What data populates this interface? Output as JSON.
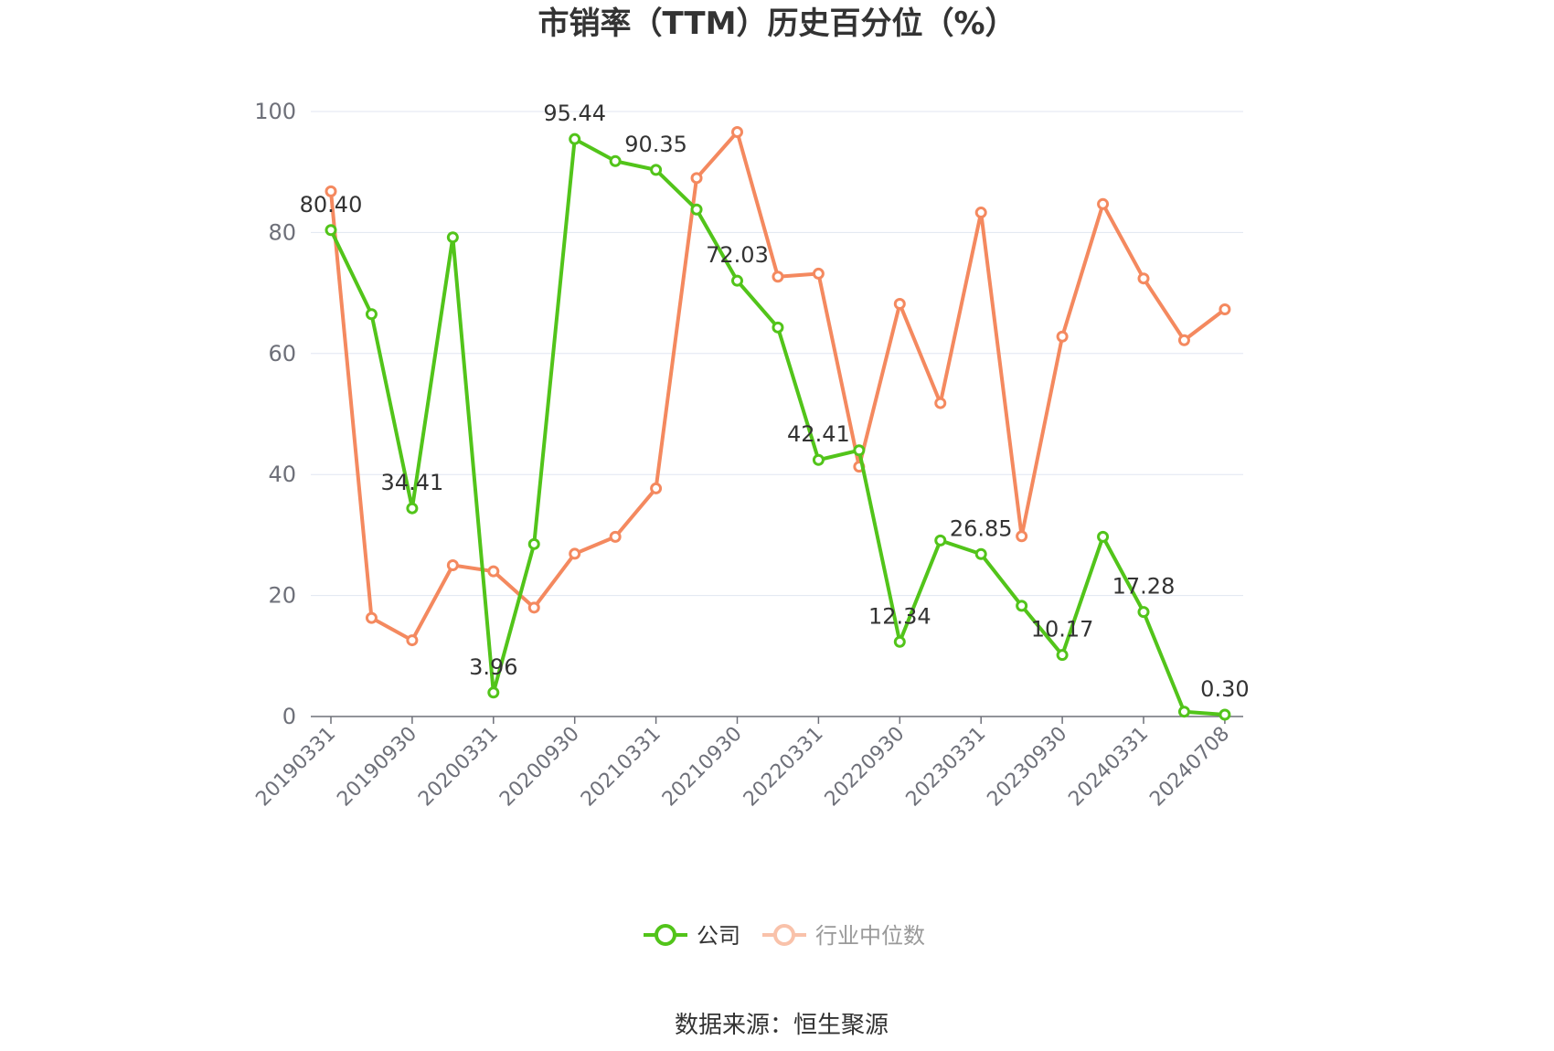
{
  "title": "市销率（TTM）历史百分位（%）",
  "source": "数据来源：恒生聚源",
  "legend": [
    {
      "name": "公司",
      "color": "#52c41a",
      "active": true
    },
    {
      "name": "行业中位数",
      "color": "#f4895f",
      "active": false
    }
  ],
  "chart_data": {
    "type": "line",
    "ylim": [
      0,
      100
    ],
    "yticks": [
      0,
      20,
      40,
      60,
      80,
      100
    ],
    "grid": true,
    "legend_position": "bottom",
    "x": [
      "20190331",
      "20190630",
      "20190930",
      "20191231",
      "20200331",
      "20200630",
      "20200930",
      "20201231",
      "20210331",
      "20210630",
      "20210930",
      "20211231",
      "20220331",
      "20220630",
      "20220930",
      "20221231",
      "20230331",
      "20230630",
      "20230930",
      "20231231",
      "20240331",
      "20240630",
      "20240708"
    ],
    "xtick_labels": [
      "20190331",
      "20190930",
      "20200331",
      "20200930",
      "20210331",
      "20210930",
      "20220331",
      "20220930",
      "20230331",
      "20230930",
      "20240331",
      "20240708"
    ],
    "series": [
      {
        "name": "公司",
        "color": "#52c41a",
        "values": [
          80.4,
          66.5,
          34.41,
          79.2,
          3.96,
          28.5,
          95.44,
          91.8,
          90.35,
          83.8,
          72.03,
          64.3,
          42.41,
          44.0,
          12.34,
          29.1,
          26.85,
          18.3,
          10.17,
          29.7,
          17.28,
          0.8,
          0.3
        ],
        "labels": [
          "80.40",
          null,
          "34.41",
          null,
          "3.96",
          null,
          "95.44",
          null,
          "90.35",
          null,
          "72.03",
          null,
          "42.41",
          null,
          "12.34",
          null,
          "26.85",
          null,
          "10.17",
          null,
          "17.28",
          null,
          "0.30"
        ]
      },
      {
        "name": "行业中位数",
        "color": "#f4895f",
        "values": [
          86.8,
          16.3,
          12.6,
          25.0,
          24.0,
          18.0,
          26.9,
          29.7,
          37.7,
          89.0,
          96.6,
          72.7,
          73.2,
          41.3,
          68.2,
          51.8,
          83.3,
          29.8,
          62.8,
          84.7,
          72.4,
          62.2,
          67.3
        ]
      }
    ]
  }
}
